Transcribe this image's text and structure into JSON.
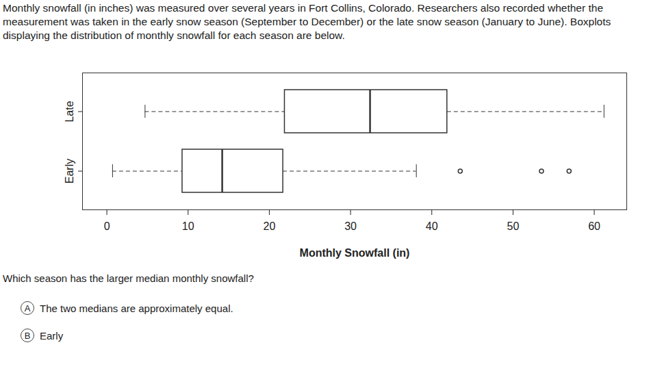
{
  "intro": "Monthly snowfall (in inches) was measured over several years in Fort Collins, Colorado. Researchers also recorded whether the measurement was taken in the early snow season (September to December) or the late snow season (January to June). Boxplots displaying the distribution of monthly snowfall for each season are below.",
  "chart_data": {
    "type": "boxplot",
    "orientation": "horizontal",
    "xlabel": "Monthly Snowfall (in)",
    "categories": [
      "Late",
      "Early"
    ],
    "boxes": [
      {
        "min": 4.7,
        "q1": 21.9,
        "median": 32.4,
        "q3": 41.9,
        "max": 61.2,
        "outliers": []
      },
      {
        "min": 0.7,
        "q1": 9.3,
        "median": 14.2,
        "q3": 21.7,
        "max": 38.1,
        "outliers": [
          43.5,
          53.5,
          56.9
        ]
      }
    ],
    "xlim": [
      -3,
      64
    ],
    "xticks": [
      0,
      10,
      20,
      30,
      40,
      50,
      60
    ]
  },
  "question": "Which season has the larger median monthly snowfall?",
  "options": [
    {
      "letter": "A",
      "text": "The two medians are approximately equal."
    },
    {
      "letter": "B",
      "text": "Early"
    }
  ]
}
